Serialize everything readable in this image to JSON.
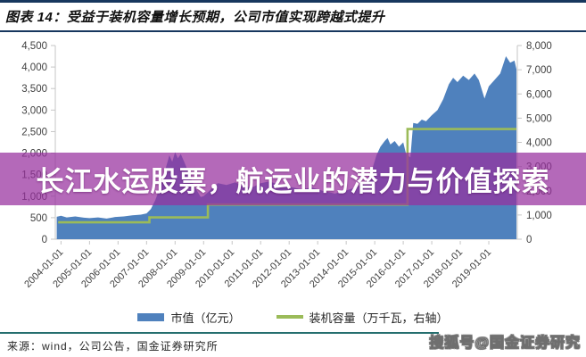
{
  "header": {
    "title": "图表 14：受益于装机容量增长预期，公司市值实现跨越式提升"
  },
  "overlay": {
    "text": "长江水运股票，航运业的潜力与价值探索",
    "bg_color": "#97279e"
  },
  "watermark": {
    "text": "搜狐号@国金证券研究"
  },
  "footer": {
    "source": "来源：wind，公司公告，国金证券研究所"
  },
  "colors": {
    "navy": "#17375e",
    "area_blue": "#4f81bd",
    "capacity_green": "#9bbb59",
    "divider_teal": "#256e6e",
    "axis_text": "#404040",
    "axis_line": "#c6c6c6"
  },
  "chart_data": {
    "type": "area",
    "title": "受益于装机容量增长预期，公司市值实现跨越式提升",
    "x_axis": {
      "labels": [
        "2004-01-01",
        "2005-01-01",
        "2006-01-01",
        "2007-01-01",
        "2008-01-01",
        "2009-01-01",
        "2010-01-01",
        "2011-01-01",
        "2012-01-01",
        "2013-01-01",
        "2014-01-01",
        "2015-01-01",
        "2016-01-01",
        "2017-01-01",
        "2018-01-01",
        "2019-01-01"
      ],
      "domain": [
        2003.8,
        2020.0
      ]
    },
    "y_left": {
      "min": 0,
      "max": 4500,
      "step": 500,
      "ticks": [
        "0",
        "500",
        "1,000",
        "1,500",
        "2,000",
        "2,500",
        "3,000",
        "3,500",
        "4,000",
        "4,500"
      ]
    },
    "y_right": {
      "min": 0,
      "max": 8000,
      "step": 1000,
      "ticks": [
        "0",
        "1,000",
        "2,000",
        "3,000",
        "4,000",
        "5,000",
        "6,000",
        "7,000",
        "8,000"
      ]
    },
    "legend": [
      {
        "label": "市值（亿元）",
        "color": "#4f81bd",
        "type": "area"
      },
      {
        "label": "装机容量（万千瓦，右轴）",
        "color": "#9bbb59",
        "type": "line"
      }
    ],
    "series": [
      {
        "name": "市值",
        "unit": "亿元",
        "axis": "left",
        "type": "area",
        "color": "#4f81bd",
        "points": [
          [
            2003.85,
            520
          ],
          [
            2004.0,
            545
          ],
          [
            2004.2,
            505
          ],
          [
            2004.5,
            530
          ],
          [
            2004.8,
            500
          ],
          [
            2005.0,
            490
          ],
          [
            2005.3,
            505
          ],
          [
            2005.6,
            480
          ],
          [
            2005.9,
            515
          ],
          [
            2006.2,
            530
          ],
          [
            2006.5,
            555
          ],
          [
            2006.8,
            570
          ],
          [
            2007.0,
            600
          ],
          [
            2007.15,
            700
          ],
          [
            2007.3,
            900
          ],
          [
            2007.5,
            1250
          ],
          [
            2007.65,
            1600
          ],
          [
            2007.8,
            1950
          ],
          [
            2007.9,
            1800
          ],
          [
            2008.0,
            2020
          ],
          [
            2008.1,
            1880
          ],
          [
            2008.2,
            1980
          ],
          [
            2008.35,
            1750
          ],
          [
            2008.5,
            1500
          ],
          [
            2008.7,
            1200
          ],
          [
            2008.9,
            980
          ],
          [
            2009.0,
            1000
          ],
          [
            2009.2,
            1120
          ],
          [
            2009.5,
            1300
          ],
          [
            2009.8,
            1260
          ],
          [
            2010.1,
            1320
          ],
          [
            2010.4,
            1240
          ],
          [
            2010.7,
            1200
          ],
          [
            2011.0,
            1300
          ],
          [
            2011.3,
            1340
          ],
          [
            2011.6,
            1280
          ],
          [
            2012.0,
            1220
          ],
          [
            2012.4,
            1160
          ],
          [
            2012.8,
            1200
          ],
          [
            2013.2,
            1120
          ],
          [
            2013.6,
            1060
          ],
          [
            2014.0,
            1130
          ],
          [
            2014.4,
            1220
          ],
          [
            2014.7,
            1350
          ],
          [
            2014.9,
            1600
          ],
          [
            2015.06,
            1950
          ],
          [
            2015.2,
            2150
          ],
          [
            2015.35,
            2280
          ],
          [
            2015.45,
            2350
          ],
          [
            2015.55,
            2200
          ],
          [
            2015.7,
            2280
          ],
          [
            2015.85,
            2150
          ],
          [
            2016.0,
            2250
          ],
          [
            2016.1,
            1980
          ],
          [
            2016.25,
            1900
          ],
          [
            2016.35,
            2700
          ],
          [
            2016.5,
            2680
          ],
          [
            2016.65,
            2780
          ],
          [
            2016.8,
            2740
          ],
          [
            2017.0,
            2880
          ],
          [
            2017.2,
            3000
          ],
          [
            2017.4,
            3250
          ],
          [
            2017.6,
            3600
          ],
          [
            2017.75,
            3750
          ],
          [
            2017.9,
            3650
          ],
          [
            2018.1,
            3800
          ],
          [
            2018.3,
            3700
          ],
          [
            2018.5,
            3850
          ],
          [
            2018.65,
            3700
          ],
          [
            2018.85,
            3270
          ],
          [
            2019.0,
            3550
          ],
          [
            2019.2,
            3700
          ],
          [
            2019.4,
            3850
          ],
          [
            2019.6,
            4250
          ],
          [
            2019.75,
            4100
          ],
          [
            2019.9,
            4150
          ],
          [
            2019.97,
            3950
          ]
        ]
      },
      {
        "name": "装机容量",
        "unit": "万千瓦",
        "axis": "right",
        "type": "step-line",
        "color": "#9bbb59",
        "points": [
          [
            2003.9,
            700
          ],
          [
            2007.1,
            700
          ],
          [
            2007.1,
            900
          ],
          [
            2009.15,
            900
          ],
          [
            2009.15,
            1430
          ],
          [
            2016.15,
            1430
          ],
          [
            2016.15,
            4550
          ],
          [
            2019.97,
            4550
          ]
        ]
      }
    ]
  }
}
